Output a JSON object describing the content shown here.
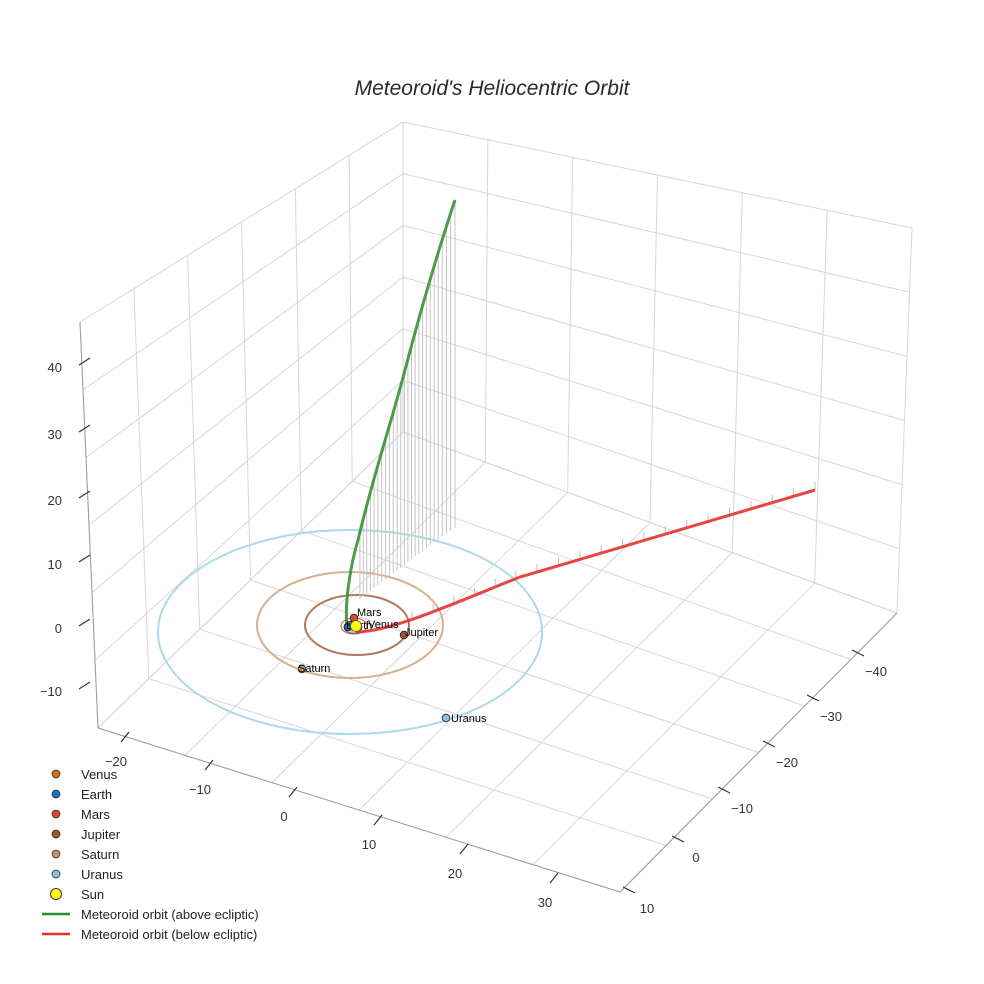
{
  "chart_data": {
    "type": "line",
    "title": "Meteoroid's Heliocentric Orbit",
    "axes": {
      "x": {
        "ticks": [
          "−40",
          "−30",
          "−20",
          "−10",
          "0",
          "10"
        ]
      },
      "y": {
        "ticks": [
          "−20",
          "−10",
          "0",
          "10",
          "20",
          "30"
        ]
      },
      "z": {
        "ticks": [
          "−10",
          "0",
          "10",
          "20",
          "30",
          "40"
        ]
      }
    },
    "planets": [
      {
        "name": "Venus",
        "color": "#c7741a"
      },
      {
        "name": "Earth",
        "color": "#1f6fb5"
      },
      {
        "name": "Mars",
        "color": "#d94a2b"
      },
      {
        "name": "Jupiter",
        "color": "#a0522d"
      },
      {
        "name": "Saturn",
        "color": "#c8956b"
      },
      {
        "name": "Uranus",
        "color": "#87c3e0"
      },
      {
        "name": "Sun",
        "color": "#ffff00"
      }
    ],
    "orbits": [
      {
        "name": "Jupiter orbit",
        "color": "#b07a5a"
      },
      {
        "name": "Saturn orbit",
        "color": "#d7b08e"
      },
      {
        "name": "Uranus orbit",
        "color": "#a9dbe8"
      }
    ],
    "series": [
      {
        "name": "Meteoroid orbit (above ecliptic)",
        "color": "#2e8b2e"
      },
      {
        "name": "Meteoroid orbit (below ecliptic)",
        "color": "#e23232"
      }
    ],
    "legend": [
      {
        "label": "Venus",
        "marker": "dot",
        "color": "#c7741a"
      },
      {
        "label": "Earth",
        "marker": "dot",
        "color": "#1f6fb5"
      },
      {
        "label": "Mars",
        "marker": "dot",
        "color": "#d94a2b"
      },
      {
        "label": "Jupiter",
        "marker": "dot",
        "color": "#a0522d"
      },
      {
        "label": "Saturn",
        "marker": "dot",
        "color": "#c8956b"
      },
      {
        "label": "Uranus",
        "marker": "dot",
        "color": "#87c3e0"
      },
      {
        "label": "Sun",
        "marker": "big-dot",
        "color": "#ffff00"
      },
      {
        "label": "Meteoroid orbit (above ecliptic)",
        "marker": "line",
        "color": "#2e8b2e"
      },
      {
        "label": "Meteoroid orbit (below ecliptic)",
        "marker": "line",
        "color": "#e23232"
      }
    ],
    "legend_position": "bottom-left",
    "grid": true
  }
}
